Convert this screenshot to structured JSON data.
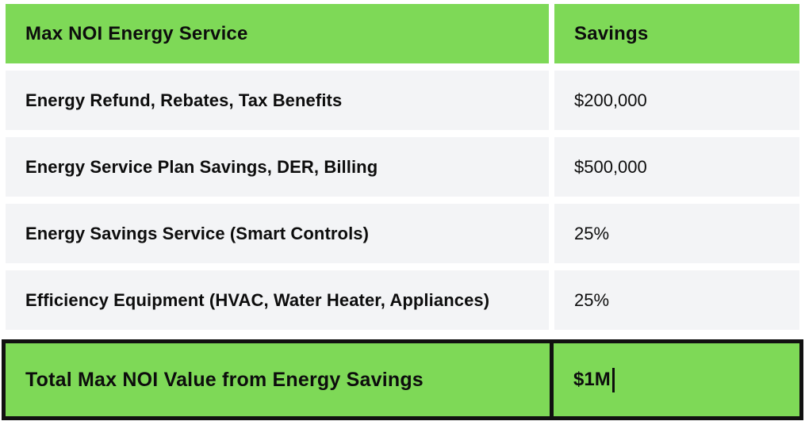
{
  "colors": {
    "accent_green": "#7ed957",
    "row_gray": "#f3f4f6",
    "border_black": "#111111",
    "text_black": "#0d0d0d"
  },
  "table": {
    "header": {
      "service_label": "Max NOI Energy Service",
      "savings_label": "Savings"
    },
    "rows": [
      {
        "label": "Energy Refund, Rebates, Tax Benefits",
        "value": "$200,000"
      },
      {
        "label": "Energy Service Plan Savings, DER, Billing",
        "value": "$500,000"
      },
      {
        "label": "Energy Savings Service (Smart Controls)",
        "value": "25%"
      },
      {
        "label": "Efficiency Equipment (HVAC, Water Heater, Appliances)",
        "value": "25%"
      }
    ],
    "total": {
      "label": "Total Max NOI Value from Energy Savings",
      "value": "$1M"
    }
  },
  "chart_data": {
    "type": "table",
    "title": "Max NOI Energy Service Savings",
    "columns": [
      "Max NOI Energy Service",
      "Savings"
    ],
    "rows": [
      [
        "Energy Refund, Rebates, Tax Benefits",
        "$200,000"
      ],
      [
        "Energy Service Plan Savings, DER, Billing",
        "$500,000"
      ],
      [
        "Energy Savings Service (Smart Controls)",
        "25%"
      ],
      [
        "Efficiency Equipment (HVAC, Water Heater, Appliances)",
        "25%"
      ],
      [
        "Total Max NOI Value from Energy Savings",
        "$1M"
      ]
    ],
    "layout_hints": {
      "header_background": "#7ed957",
      "total_row_background": "#7ed957",
      "body_row_background": "#f3f4f6",
      "total_row_border": "#111111",
      "editing_caret_in_total_value": true
    }
  }
}
